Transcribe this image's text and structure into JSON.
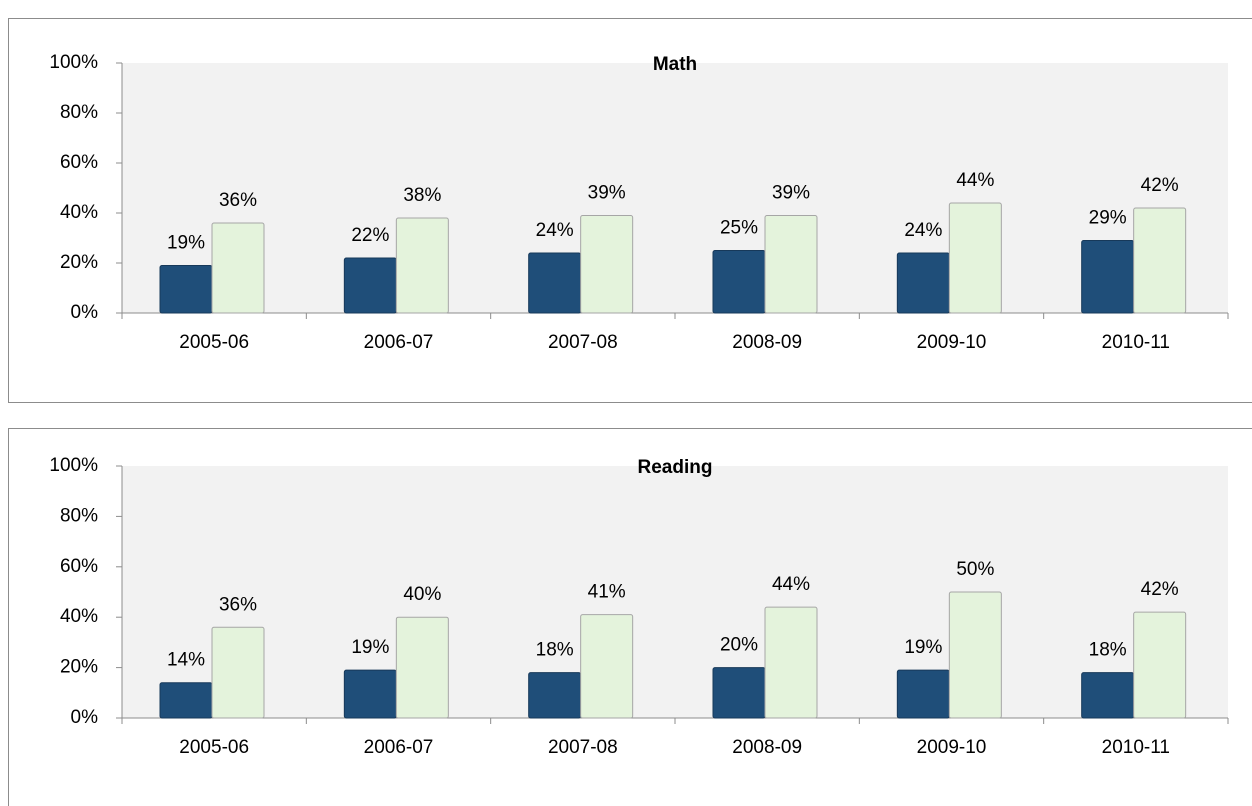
{
  "chart_data": [
    {
      "type": "bar",
      "title": "Math",
      "categories": [
        "2005-06",
        "2006-07",
        "2007-08",
        "2008-09",
        "2009-10",
        "2010-11"
      ],
      "series": [
        {
          "color": "#1f4e79",
          "values": [
            19,
            22,
            24,
            25,
            24,
            29
          ],
          "value_labels": [
            "19%",
            "22%",
            "24%",
            "25%",
            "24%",
            "29%"
          ]
        },
        {
          "color": "#e4f3dc",
          "values": [
            36,
            38,
            39,
            39,
            44,
            42
          ],
          "value_labels": [
            "36%",
            "38%",
            "39%",
            "39%",
            "44%",
            "42%"
          ]
        }
      ],
      "ylim": [
        0,
        100
      ],
      "yticks": [
        {
          "value": 0,
          "label": "0%"
        },
        {
          "value": 20,
          "label": "20%"
        },
        {
          "value": 40,
          "label": "40%"
        },
        {
          "value": 60,
          "label": "60%"
        },
        {
          "value": 80,
          "label": "80%"
        },
        {
          "value": 100,
          "label": "100%"
        }
      ]
    },
    {
      "type": "bar",
      "title": "Reading",
      "categories": [
        "2005-06",
        "2006-07",
        "2007-08",
        "2008-09",
        "2009-10",
        "2010-11"
      ],
      "series": [
        {
          "color": "#1f4e79",
          "values": [
            14,
            19,
            18,
            20,
            19,
            18
          ],
          "value_labels": [
            "14%",
            "19%",
            "18%",
            "20%",
            "19%",
            "18%"
          ]
        },
        {
          "color": "#e4f3dc",
          "values": [
            36,
            40,
            41,
            44,
            50,
            42
          ],
          "value_labels": [
            "36%",
            "40%",
            "41%",
            "44%",
            "50%",
            "42%"
          ]
        }
      ],
      "ylim": [
        0,
        100
      ],
      "yticks": [
        {
          "value": 0,
          "label": "0%"
        },
        {
          "value": 20,
          "label": "20%"
        },
        {
          "value": 40,
          "label": "40%"
        },
        {
          "value": 60,
          "label": "60%"
        },
        {
          "value": 80,
          "label": "80%"
        },
        {
          "value": 100,
          "label": "100%"
        }
      ]
    }
  ]
}
